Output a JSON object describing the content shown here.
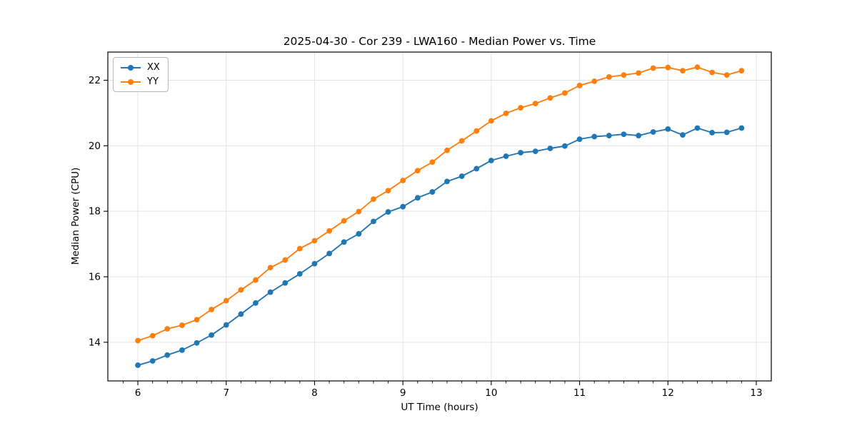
{
  "figure": {
    "background": "#ffffff"
  },
  "legend": {
    "position": "upper-left"
  },
  "chart_data": {
    "type": "line",
    "title": "2025-04-30 - Cor 239 - LWA160 - Median Power vs. Time",
    "xlabel": "UT Time (hours)",
    "ylabel": "Median Power (CPU)",
    "xlim": [
      5.66,
      13.17
    ],
    "ylim": [
      12.82,
      22.86
    ],
    "xticks": [
      6,
      7,
      8,
      9,
      10,
      11,
      12,
      13
    ],
    "yticks": [
      14,
      16,
      18,
      20,
      22
    ],
    "x_minor_step": 0.1666667,
    "grid": true,
    "grid_color": "#e3e3e3",
    "axis_color": "#000000",
    "legend_position": "upper-left",
    "x": [
      6.0,
      6.167,
      6.333,
      6.5,
      6.667,
      6.833,
      7.0,
      7.167,
      7.333,
      7.5,
      7.667,
      7.833,
      8.0,
      8.167,
      8.333,
      8.5,
      8.667,
      8.833,
      9.0,
      9.167,
      9.333,
      9.5,
      9.667,
      9.833,
      10.0,
      10.167,
      10.333,
      10.5,
      10.667,
      10.833,
      11.0,
      11.167,
      11.333,
      11.5,
      11.667,
      11.833,
      12.0,
      12.167,
      12.333,
      12.5,
      12.667,
      12.833
    ],
    "series": [
      {
        "name": "XX",
        "color": "#1f77b4",
        "values": [
          13.3,
          13.43,
          13.61,
          13.76,
          13.98,
          14.22,
          14.53,
          14.86,
          15.2,
          15.53,
          15.81,
          16.09,
          16.4,
          16.71,
          17.06,
          17.31,
          17.69,
          17.98,
          18.14,
          18.41,
          18.59,
          18.91,
          19.07,
          19.3,
          19.55,
          19.68,
          19.79,
          19.83,
          19.92,
          19.99,
          20.2,
          20.28,
          20.31,
          20.35,
          20.31,
          20.42,
          20.51,
          20.33,
          20.54,
          20.4,
          20.41,
          20.54
        ]
      },
      {
        "name": "YY",
        "color": "#ff7f0e",
        "values": [
          14.05,
          14.2,
          14.41,
          14.52,
          14.69,
          15.0,
          15.27,
          15.6,
          15.9,
          16.28,
          16.51,
          16.86,
          17.1,
          17.4,
          17.71,
          17.99,
          18.37,
          18.63,
          18.94,
          19.24,
          19.5,
          19.86,
          20.15,
          20.45,
          20.76,
          20.99,
          21.16,
          21.29,
          21.46,
          21.61,
          21.84,
          21.97,
          22.1,
          22.16,
          22.22,
          22.37,
          22.39,
          22.29,
          22.4,
          22.24,
          22.16,
          22.29
        ]
      }
    ]
  }
}
